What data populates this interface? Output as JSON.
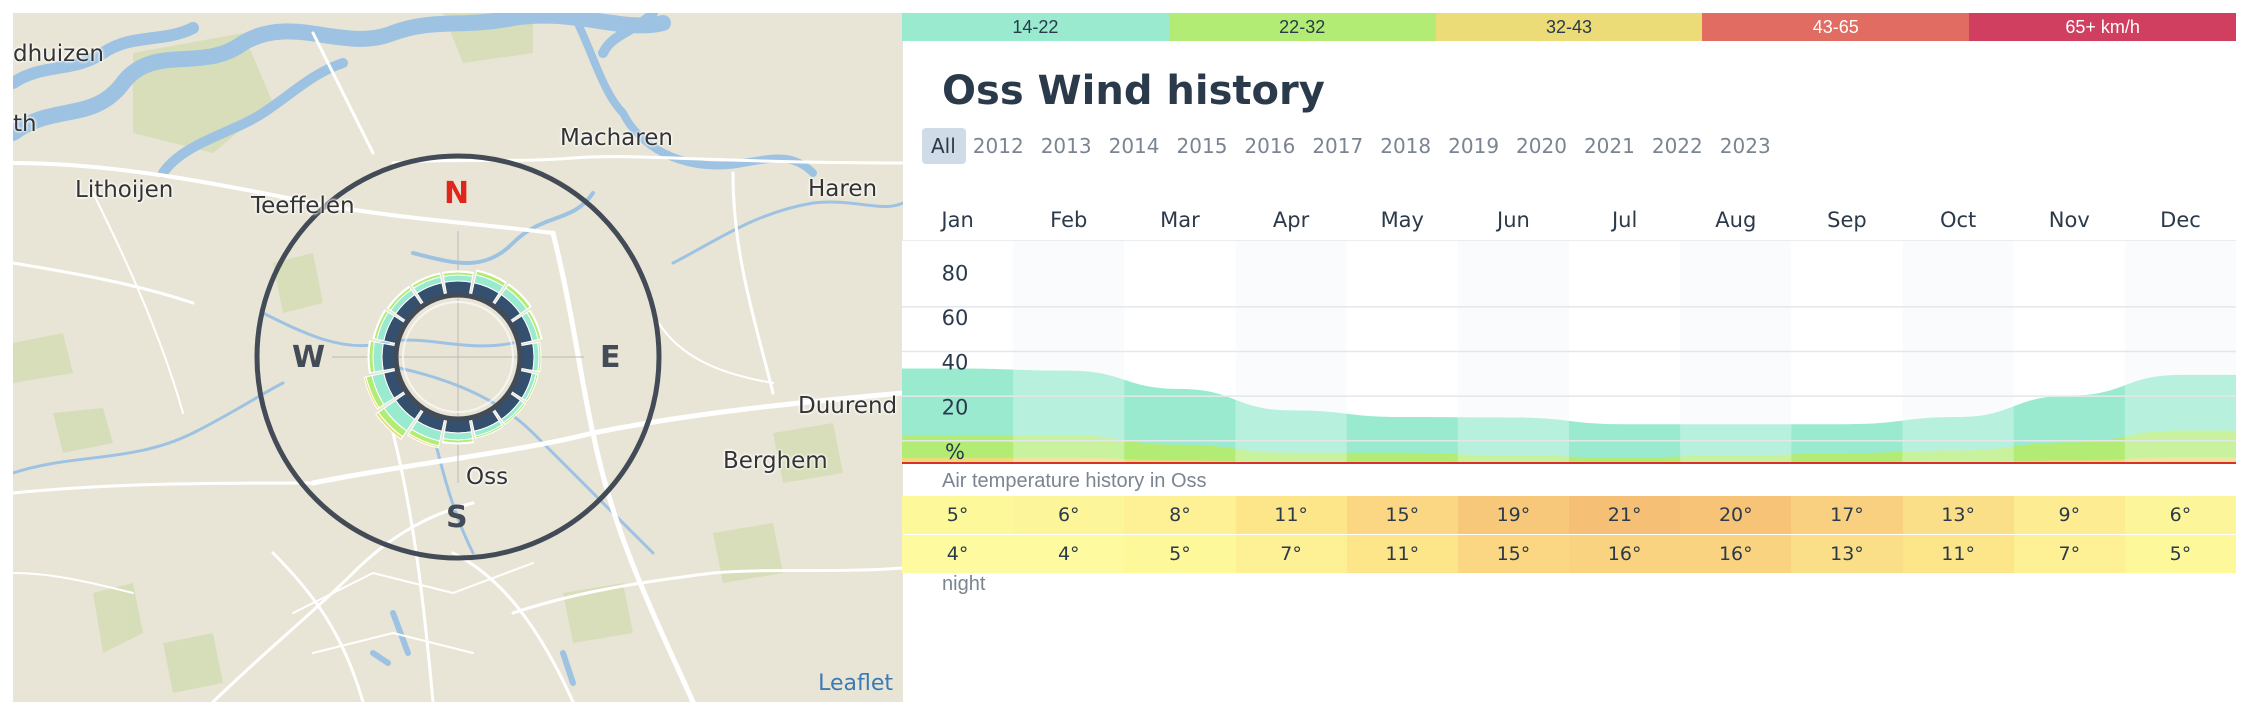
{
  "map": {
    "places": [
      {
        "name": "dhuizen",
        "id": "place-dhuizen"
      },
      {
        "name": "th",
        "id": "place-th"
      },
      {
        "name": "Lithoijen",
        "id": "place-lithoijen"
      },
      {
        "name": "Teeffelen",
        "id": "place-teeffelen"
      },
      {
        "name": "Macharen",
        "id": "place-macharen"
      },
      {
        "name": "Haren",
        "id": "place-haren"
      },
      {
        "name": "Duurend",
        "id": "place-duurend"
      },
      {
        "name": "Berghem",
        "id": "place-berghem"
      },
      {
        "name": "Oss",
        "id": "place-oss"
      }
    ],
    "compass": {
      "n": "N",
      "e": "E",
      "s": "S",
      "w": "W"
    },
    "attribution": "Leaflet",
    "colors": {
      "water": "#9ec3e2",
      "land": "#e9e5d6",
      "road": "#ffffff",
      "green": "#d3ddb4",
      "compass_ring": "#434b57"
    }
  },
  "legend": [
    {
      "label": "14-22",
      "color": "#9aead0",
      "text_color": "#2b3a4a"
    },
    {
      "label": "22-32",
      "color": "#b2ec74",
      "text_color": "#2b3a4a"
    },
    {
      "label": "32-43",
      "color": "#ebdc78",
      "text_color": "#2b3a4a"
    },
    {
      "label": "43-65",
      "color": "#e06c62",
      "text_color": "#ffffff"
    },
    {
      "label": "65+ km/h",
      "color": "#d03e60",
      "text_color": "#ffffff"
    }
  ],
  "title": "Oss Wind history",
  "years": [
    "All",
    "2012",
    "2013",
    "2014",
    "2015",
    "2016",
    "2017",
    "2018",
    "2019",
    "2020",
    "2021",
    "2022",
    "2023"
  ],
  "selected_year": "All",
  "months": [
    "Jan",
    "Feb",
    "Mar",
    "Apr",
    "May",
    "Jun",
    "Jul",
    "Aug",
    "Sep",
    "Oct",
    "Nov",
    "Dec"
  ],
  "chart_data": {
    "type": "area",
    "x": [
      "Jan",
      "Feb",
      "Mar",
      "Apr",
      "May",
      "Jun",
      "Jul",
      "Aug",
      "Sep",
      "Oct",
      "Nov",
      "Dec"
    ],
    "y_ticks": [
      "80",
      "60",
      "40",
      "20",
      "%"
    ],
    "ylim": [
      0,
      100
    ],
    "series": [
      {
        "name": "14-22",
        "color": "#9aead0",
        "values": [
          30,
          29,
          25,
          19,
          16,
          17,
          15,
          14,
          13,
          15,
          21,
          25
        ]
      },
      {
        "name": "22-32",
        "color": "#b2ec74",
        "values": [
          10,
          10,
          7,
          4,
          4,
          3,
          2,
          3,
          4,
          5,
          8,
          12
        ]
      },
      {
        "name": "32-43",
        "color": "#ebdc78",
        "values": [
          2,
          2,
          1,
          0.5,
          0.5,
          0.3,
          0.3,
          0.3,
          0.3,
          0.5,
          1,
          2
        ]
      },
      {
        "name": "43-65",
        "color": "#e06c62",
        "values": [
          0.4,
          0.4,
          0.2,
          0.1,
          0.1,
          0.1,
          0.1,
          0.1,
          0.1,
          0.1,
          0.2,
          0.5
        ]
      }
    ]
  },
  "temperature": {
    "caption": "Air temperature history in Oss",
    "day": [
      "5°",
      "6°",
      "8°",
      "11°",
      "15°",
      "19°",
      "21°",
      "20°",
      "17°",
      "13°",
      "9°",
      "6°"
    ],
    "night": [
      "4°",
      "4°",
      "5°",
      "7°",
      "11°",
      "15°",
      "16°",
      "16°",
      "13°",
      "11°",
      "7°",
      "5°"
    ],
    "day_colors": [
      "#fdf89a",
      "#fdf59a",
      "#fdf095",
      "#fde58a",
      "#fbd783",
      "#f8c87a",
      "#f6bf76",
      "#f7c377",
      "#f9d07f",
      "#fbdf88",
      "#fdec92",
      "#fdf59a"
    ],
    "night_colors": [
      "#fdfaa0",
      "#fdfaa0",
      "#fdf89a",
      "#fdf095",
      "#fde58a",
      "#fbd783",
      "#fad380",
      "#fad380",
      "#fbdf88",
      "#fde58a",
      "#fdf095",
      "#fdf89a"
    ],
    "night_label": "night"
  }
}
